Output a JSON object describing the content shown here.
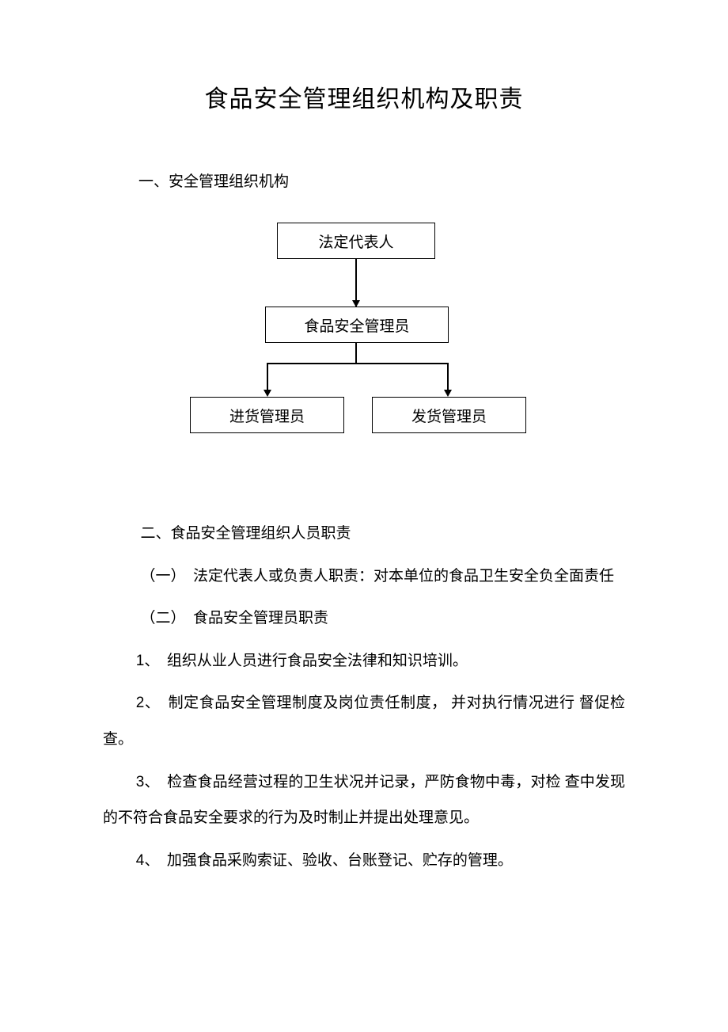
{
  "title": "食品安全管理组织机构及职责",
  "section1_heading": "一、安全管理组织机构",
  "org_chart": {
    "type": "tree",
    "nodes": {
      "top": "法定代表人",
      "mid": "食品安全管理员",
      "left": "进货管理员",
      "right": "发货管理员"
    },
    "box_border_color": "#000000",
    "box_background": "#ffffff",
    "box_fontsize": 19,
    "line_color": "#000000",
    "line_width": 1.5
  },
  "section2_heading": "二、食品安全管理组织人员职责",
  "paragraphs": {
    "p1": "（一）　法定代表人或负责人职责：对本单位的食品卫生安全负全面责任",
    "p2": "（二）　食品安全管理员职责",
    "p3_num": "1、",
    "p3": "　组织从业人员进行食品安全法律和知识培训。",
    "p4_num": "2、",
    "p4": "　制定食品安全管理制度及岗位责任制度， 并对执行情况进行 督促检查。",
    "p5_num": "3、",
    "p5": "　检查食品经营过程的卫生状况并记录，严防食物中毒，对检 查中发现的不符合食品安全要求的行为及时制止并提出处理意见。",
    "p6_num": "4、",
    "p6": "　加强食品采购索证、验收、台账登记、贮存的管理。"
  },
  "colors": {
    "background": "#ffffff",
    "text": "#000000"
  },
  "typography": {
    "title_fontsize": 30,
    "body_fontsize": 19,
    "line_height": 2.4,
    "font_family": "SimSun"
  }
}
